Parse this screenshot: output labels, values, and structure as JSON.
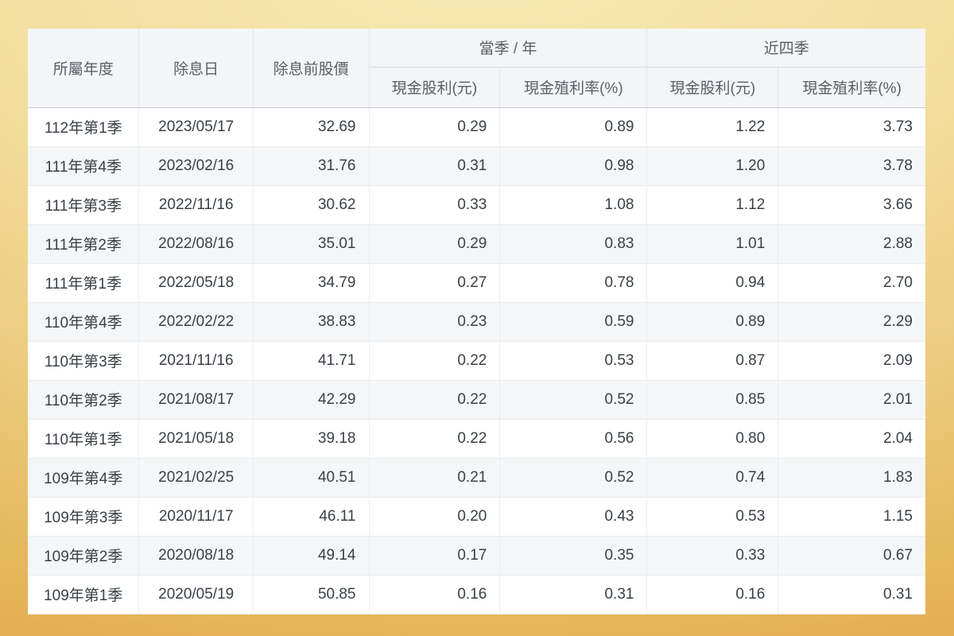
{
  "table": {
    "headers": {
      "year": "所屬年度",
      "ex_date": "除息日",
      "price_before": "除息前股價",
      "group_current": "當季 / 年",
      "group_last4": "近四季",
      "sub": [
        "現金股利(元)",
        "現金殖利率(%)",
        "現金股利(元)",
        "現金殖利率(%)"
      ]
    },
    "rows": [
      {
        "period": "112年第1季",
        "date": "2023/05/17",
        "price": "32.69",
        "q_dividend": "0.29",
        "q_yield": "0.89",
        "y4_dividend": "1.22",
        "y4_yield": "3.73"
      },
      {
        "period": "111年第4季",
        "date": "2023/02/16",
        "price": "31.76",
        "q_dividend": "0.31",
        "q_yield": "0.98",
        "y4_dividend": "1.20",
        "y4_yield": "3.78"
      },
      {
        "period": "111年第3季",
        "date": "2022/11/16",
        "price": "30.62",
        "q_dividend": "0.33",
        "q_yield": "1.08",
        "y4_dividend": "1.12",
        "y4_yield": "3.66"
      },
      {
        "period": "111年第2季",
        "date": "2022/08/16",
        "price": "35.01",
        "q_dividend": "0.29",
        "q_yield": "0.83",
        "y4_dividend": "1.01",
        "y4_yield": "2.88"
      },
      {
        "period": "111年第1季",
        "date": "2022/05/18",
        "price": "34.79",
        "q_dividend": "0.27",
        "q_yield": "0.78",
        "y4_dividend": "0.94",
        "y4_yield": "2.70"
      },
      {
        "period": "110年第4季",
        "date": "2022/02/22",
        "price": "38.83",
        "q_dividend": "0.23",
        "q_yield": "0.59",
        "y4_dividend": "0.89",
        "y4_yield": "2.29"
      },
      {
        "period": "110年第3季",
        "date": "2021/11/16",
        "price": "41.71",
        "q_dividend": "0.22",
        "q_yield": "0.53",
        "y4_dividend": "0.87",
        "y4_yield": "2.09"
      },
      {
        "period": "110年第2季",
        "date": "2021/08/17",
        "price": "42.29",
        "q_dividend": "0.22",
        "q_yield": "0.52",
        "y4_dividend": "0.85",
        "y4_yield": "2.01"
      },
      {
        "period": "110年第1季",
        "date": "2021/05/18",
        "price": "39.18",
        "q_dividend": "0.22",
        "q_yield": "0.56",
        "y4_dividend": "0.80",
        "y4_yield": "2.04"
      },
      {
        "period": "109年第4季",
        "date": "2021/02/25",
        "price": "40.51",
        "q_dividend": "0.21",
        "q_yield": "0.52",
        "y4_dividend": "0.74",
        "y4_yield": "1.83"
      },
      {
        "period": "109年第3季",
        "date": "2020/11/17",
        "price": "46.11",
        "q_dividend": "0.20",
        "q_yield": "0.43",
        "y4_dividend": "0.53",
        "y4_yield": "1.15"
      },
      {
        "period": "109年第2季",
        "date": "2020/08/18",
        "price": "49.14",
        "q_dividend": "0.17",
        "q_yield": "0.35",
        "y4_dividend": "0.33",
        "y4_yield": "0.67"
      },
      {
        "period": "109年第1季",
        "date": "2020/05/19",
        "price": "50.85",
        "q_dividend": "0.16",
        "q_yield": "0.31",
        "y4_dividend": "0.16",
        "y4_yield": "0.31"
      }
    ]
  }
}
